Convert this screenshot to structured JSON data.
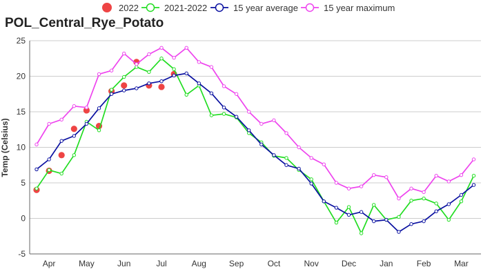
{
  "chart_data": {
    "type": "line",
    "title": "POL_Central_Rye_Potato",
    "ylabel": "Temp (Celsius)",
    "xlabel": "",
    "ylim": [
      -5,
      25
    ],
    "yticks": [
      -5,
      0,
      5,
      10,
      15,
      20,
      25
    ],
    "grid": true,
    "legend_position": "top",
    "months": [
      "Apr",
      "May",
      "Jun",
      "Jul",
      "Aug",
      "Sep",
      "Oct",
      "Nov",
      "Dec",
      "Jan",
      "Feb",
      "Mar"
    ],
    "series": [
      {
        "name": "2022",
        "color": "#ee4444",
        "style": "dots",
        "values": [
          4.0,
          6.7,
          8.9,
          12.6,
          15.2,
          13.0,
          17.9,
          18.7,
          22.0,
          18.7,
          18.5,
          20.3
        ]
      },
      {
        "name": "2021-2022",
        "color": "#22dd22",
        "style": "line",
        "values": [
          4.2,
          6.8,
          6.3,
          8.9,
          13.6,
          12.4,
          18.1,
          19.9,
          21.3,
          20.6,
          22.5,
          21.0,
          17.4,
          18.7,
          14.5,
          14.7,
          14.2,
          12.0,
          10.7,
          8.8,
          8.5,
          6.8,
          5.5,
          2.4,
          -0.6,
          1.6,
          -2.1,
          1.9,
          -0.2,
          0.2,
          2.5,
          2.8,
          2.1,
          -0.2,
          2.4,
          6.0
        ]
      },
      {
        "name": "15 year average",
        "color": "#0a10a0",
        "style": "line",
        "values": [
          6.9,
          8.3,
          10.9,
          11.6,
          13.3,
          15.5,
          17.5,
          18.0,
          18.3,
          19.0,
          19.3,
          20.1,
          20.4,
          19.0,
          17.6,
          15.6,
          14.3,
          12.4,
          10.4,
          8.9,
          7.5,
          7.0,
          4.9,
          2.4,
          1.5,
          0.5,
          0.9,
          -0.4,
          -0.2,
          -1.9,
          -0.8,
          -0.4,
          1.0,
          2.0,
          3.3,
          4.7
        ]
      },
      {
        "name": "15 year maximum",
        "color": "#ee44ee",
        "style": "line",
        "values": [
          10.4,
          13.3,
          13.9,
          15.8,
          15.6,
          20.3,
          20.8,
          23.2,
          21.7,
          23.1,
          24.0,
          22.6,
          24.0,
          22.0,
          21.3,
          18.6,
          17.5,
          15.0,
          13.3,
          13.8,
          12.0,
          10.0,
          8.5,
          7.6,
          5.0,
          4.2,
          4.5,
          6.1,
          5.8,
          2.8,
          4.2,
          3.7,
          6.0,
          5.2,
          6.1,
          8.3
        ]
      }
    ]
  }
}
